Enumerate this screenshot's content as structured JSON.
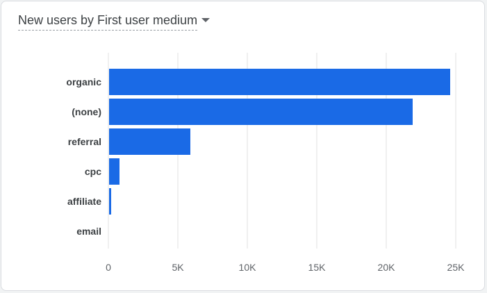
{
  "header": {
    "title": "New users by First user medium"
  },
  "chart_data": {
    "type": "bar",
    "orientation": "horizontal",
    "categories": [
      "organic",
      "(none)",
      "referral",
      "cpc",
      "affiliate",
      "email"
    ],
    "values": [
      24600,
      21900,
      5900,
      800,
      200,
      0
    ],
    "xlim": [
      0,
      25000
    ],
    "x_ticks": [
      0,
      5000,
      10000,
      15000,
      20000,
      25000
    ],
    "x_tick_labels": [
      "0",
      "5K",
      "10K",
      "15K",
      "20K",
      "25K"
    ],
    "bar_color": "#1a6ae6",
    "grid": true
  }
}
